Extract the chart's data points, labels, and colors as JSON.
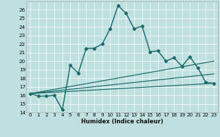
{
  "xlabel": "Humidex (Indice chaleur)",
  "bg_color": "#c0e0e0",
  "line_color": "#1a6b6b",
  "xlim": [
    -0.5,
    23.5
  ],
  "ylim": [
    14,
    27
  ],
  "yticks": [
    14,
    15,
    16,
    17,
    18,
    19,
    20,
    21,
    22,
    23,
    24,
    25,
    26
  ],
  "xticks": [
    0,
    1,
    2,
    3,
    4,
    5,
    6,
    7,
    8,
    9,
    10,
    11,
    12,
    13,
    14,
    15,
    16,
    17,
    18,
    19,
    20,
    21,
    22,
    23
  ],
  "main_x": [
    0,
    1,
    2,
    3,
    4,
    5,
    6,
    7,
    8,
    9,
    10,
    11,
    12,
    13,
    14,
    15,
    16,
    17,
    18,
    19,
    20,
    21,
    22,
    23
  ],
  "main_y": [
    16.2,
    15.9,
    15.9,
    16.0,
    14.3,
    19.5,
    18.6,
    21.5,
    21.5,
    22.0,
    23.8,
    26.5,
    25.6,
    23.8,
    24.1,
    21.1,
    21.2,
    20.0,
    20.4,
    19.4,
    20.5,
    19.2,
    17.5,
    17.4
  ],
  "trend_lines": [
    {
      "x": [
        0,
        23
      ],
      "y": [
        16.2,
        20.0
      ]
    },
    {
      "x": [
        0,
        23
      ],
      "y": [
        16.2,
        18.5
      ]
    },
    {
      "x": [
        0,
        23
      ],
      "y": [
        16.2,
        17.4
      ]
    }
  ],
  "xlabel_fontsize": 6.0,
  "tick_fontsize": 5.2
}
